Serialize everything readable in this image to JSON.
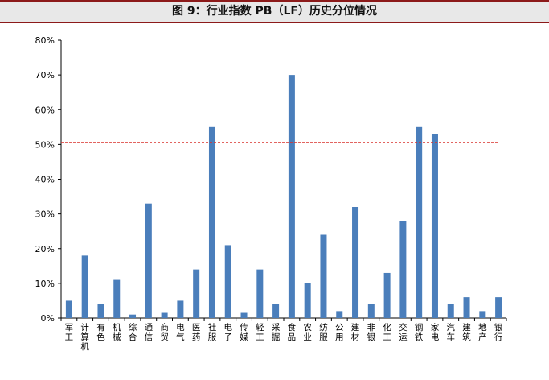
{
  "figure": {
    "title": "图 9：行业指数 PB（LF）历史分位情况"
  },
  "chart_data": {
    "type": "bar",
    "categories": [
      "军工",
      "计算机",
      "有色",
      "机械",
      "综合",
      "通信",
      "商贸",
      "电气",
      "医药",
      "社服",
      "电子",
      "传媒",
      "轻工",
      "采掘",
      "食品",
      "农业",
      "纺服",
      "公用",
      "建材",
      "非银",
      "化工",
      "交运",
      "钢铁",
      "家电",
      "汽车",
      "建筑",
      "地产",
      "银行"
    ],
    "values": [
      5,
      18,
      4,
      11,
      1,
      33,
      1.5,
      5,
      14,
      55,
      21,
      1.5,
      14,
      4,
      70,
      10,
      24,
      2,
      32,
      4,
      13,
      28,
      55,
      53,
      4,
      6,
      2,
      6
    ],
    "value_format": "percent",
    "ylim": [
      0,
      80
    ],
    "yticks": [
      "0%",
      "10%",
      "20%",
      "30%",
      "40%",
      "50%",
      "60%",
      "70%",
      "80%"
    ],
    "reference_line": {
      "value": 50.5,
      "style": "dashed",
      "color": "#d9302c"
    },
    "bar_color": "#4a7ebb",
    "grid": false,
    "legend": "none",
    "xlabel": "",
    "ylabel": ""
  }
}
